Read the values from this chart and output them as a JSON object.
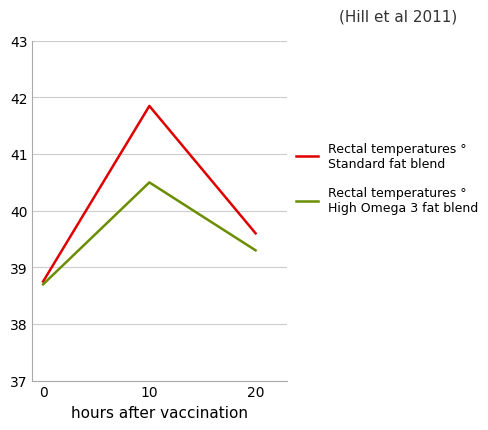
{
  "x": [
    0,
    10,
    20
  ],
  "red_line": [
    38.75,
    41.85,
    39.6
  ],
  "green_line": [
    38.7,
    40.5,
    39.3
  ],
  "red_color": "#e00000",
  "green_color": "#6b8e00",
  "xlabel": "hours after vaccination",
  "ylim": [
    37,
    43
  ],
  "yticks": [
    37,
    38,
    39,
    40,
    41,
    42,
    43
  ],
  "xticks": [
    0,
    10,
    20
  ],
  "citation": "(Hill et al 2011)",
  "legend_red_line1": "Rectal temperatures °",
  "legend_red_line2": "Standard fat blend",
  "legend_green_line1": "Rectal temperatures °",
  "legend_green_line2": "High Omega 3 fat blend",
  "background_color": "#ffffff",
  "grid_color": "#cccccc",
  "line_width": 1.8,
  "font_size_ticks": 10,
  "font_size_xlabel": 11,
  "font_size_legend": 9,
  "font_size_citation": 11
}
